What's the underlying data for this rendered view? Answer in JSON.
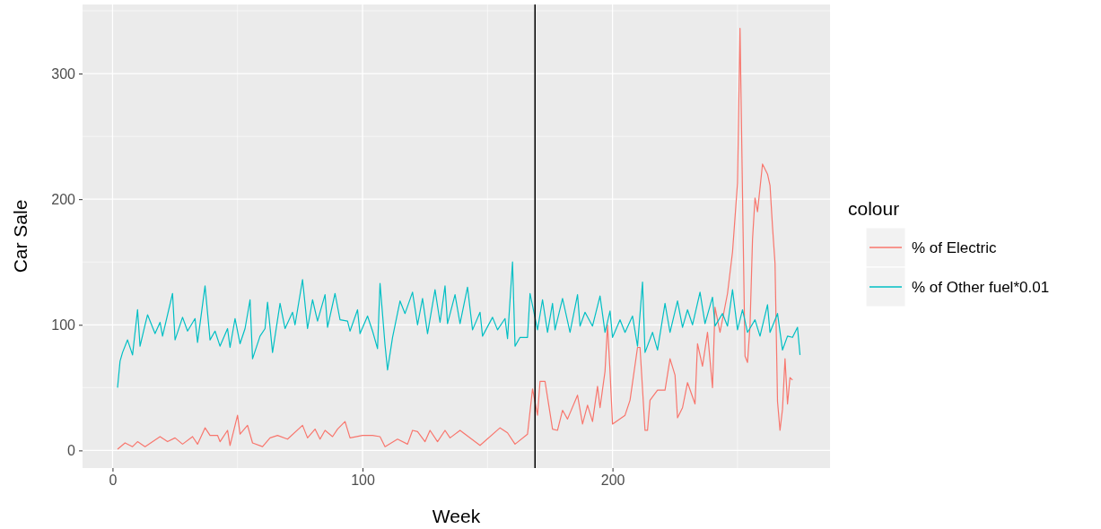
{
  "chart_data": {
    "type": "line",
    "xlabel": "Week",
    "ylabel": "Car Sale",
    "legend_title": "colour",
    "xlim": [
      -12,
      287
    ],
    "ylim": [
      -14,
      355
    ],
    "xticks": [
      0,
      100,
      200
    ],
    "yticks": [
      0,
      100,
      200,
      300
    ],
    "grid": true,
    "legend": "right",
    "line_style": "solid",
    "marker": "none",
    "ref_lines": [
      {
        "axis": "x",
        "value": 169,
        "color": "#000000"
      }
    ],
    "series": [
      {
        "name": "% of Electric",
        "color": "#f8766d",
        "x": [
          2,
          5,
          8,
          10,
          13,
          19,
          22,
          25,
          28,
          32,
          34,
          37,
          39,
          42,
          43,
          46,
          47,
          50,
          51,
          54,
          56,
          60,
          63,
          66,
          70,
          76,
          78,
          81,
          83,
          85,
          88,
          90,
          93,
          95,
          100,
          104,
          107,
          109,
          114,
          118,
          120,
          122,
          125,
          127,
          130,
          133,
          135,
          139,
          147,
          155,
          158,
          161,
          166,
          168,
          170,
          171,
          173,
          176,
          178,
          180,
          182,
          186,
          188,
          190,
          192,
          194,
          195,
          197,
          198,
          199,
          200,
          205,
          207,
          210,
          211,
          213,
          214,
          215,
          218,
          221,
          223,
          225,
          226,
          228,
          230,
          233,
          234,
          236,
          238,
          240,
          241,
          243,
          246,
          248,
          250,
          251,
          252,
          253,
          254,
          255,
          256,
          257,
          258,
          260,
          262,
          263,
          264,
          265,
          266,
          267,
          268,
          269,
          270,
          271,
          272
        ],
        "values": [
          1,
          6,
          3,
          7,
          3,
          11,
          7,
          10,
          5,
          11,
          5,
          18,
          12,
          12,
          7,
          16,
          4,
          28,
          13,
          20,
          6,
          3,
          10,
          12,
          9,
          20,
          10,
          17,
          9,
          16,
          11,
          17,
          23,
          10,
          12,
          12,
          11,
          3,
          9,
          5,
          16,
          15,
          7,
          16,
          7,
          16,
          10,
          16,
          4,
          18,
          14,
          5,
          13,
          49,
          28,
          55,
          55,
          17,
          16,
          32,
          25,
          44,
          21,
          36,
          23,
          51,
          34,
          63,
          100,
          63,
          21,
          28,
          40,
          82,
          82,
          16,
          16,
          40,
          48,
          48,
          73,
          60,
          26,
          34,
          54,
          37,
          85,
          67,
          94,
          50,
          114,
          94,
          125,
          158,
          213,
          336,
          204,
          75,
          70,
          99,
          168,
          201,
          190,
          228,
          220,
          211,
          178,
          149,
          39,
          16,
          33,
          73,
          37,
          58,
          56
        ]
      },
      {
        "name": "% of Other fuel*0.01",
        "color": "#00bfc4",
        "x": [
          2,
          3,
          4,
          6,
          8,
          10,
          11,
          13,
          14,
          17,
          19,
          20,
          24,
          25,
          28,
          30,
          33,
          34,
          37,
          39,
          41,
          43,
          46,
          47,
          49,
          51,
          53,
          55,
          56,
          59,
          61,
          62,
          64,
          67,
          69,
          72,
          73,
          76,
          78,
          80,
          82,
          85,
          86,
          89,
          91,
          94,
          95,
          98,
          99,
          102,
          104,
          106,
          107,
          109,
          110,
          112,
          115,
          117,
          120,
          122,
          124,
          126,
          129,
          131,
          133,
          134,
          137,
          139,
          142,
          144,
          147,
          148,
          152,
          154,
          157,
          158,
          160,
          161,
          163,
          166,
          167,
          170,
          172,
          174,
          176,
          177,
          180,
          183,
          186,
          187,
          189,
          192,
          195,
          197,
          199,
          200,
          203,
          205,
          208,
          210,
          212,
          213,
          216,
          218,
          221,
          223,
          226,
          228,
          230,
          232,
          235,
          237,
          240,
          241,
          244,
          246,
          248,
          250,
          252,
          254,
          257,
          259,
          262,
          263,
          266,
          268,
          270,
          272,
          274,
          275
        ],
        "values": [
          50,
          71,
          78,
          88,
          76,
          112,
          83,
          100,
          108,
          93,
          102,
          91,
          125,
          88,
          106,
          95,
          105,
          86,
          131,
          88,
          95,
          83,
          97,
          82,
          105,
          85,
          97,
          120,
          73,
          91,
          97,
          118,
          78,
          117,
          97,
          110,
          100,
          136,
          97,
          120,
          103,
          124,
          98,
          125,
          104,
          103,
          95,
          112,
          93,
          107,
          95,
          81,
          133,
          84,
          64,
          90,
          119,
          109,
          126,
          100,
          121,
          93,
          128,
          102,
          131,
          101,
          124,
          101,
          130,
          96,
          110,
          91,
          106,
          96,
          105,
          89,
          150,
          83,
          90,
          90,
          125,
          96,
          120,
          94,
          117,
          96,
          121,
          94,
          124,
          99,
          110,
          99,
          123,
          94,
          111,
          90,
          104,
          94,
          107,
          83,
          134,
          78,
          94,
          80,
          117,
          94,
          119,
          98,
          112,
          100,
          126,
          101,
          122,
          99,
          109,
          99,
          128,
          96,
          112,
          94,
          104,
          91,
          116,
          94,
          109,
          80,
          91,
          90,
          98,
          76
        ]
      }
    ]
  }
}
